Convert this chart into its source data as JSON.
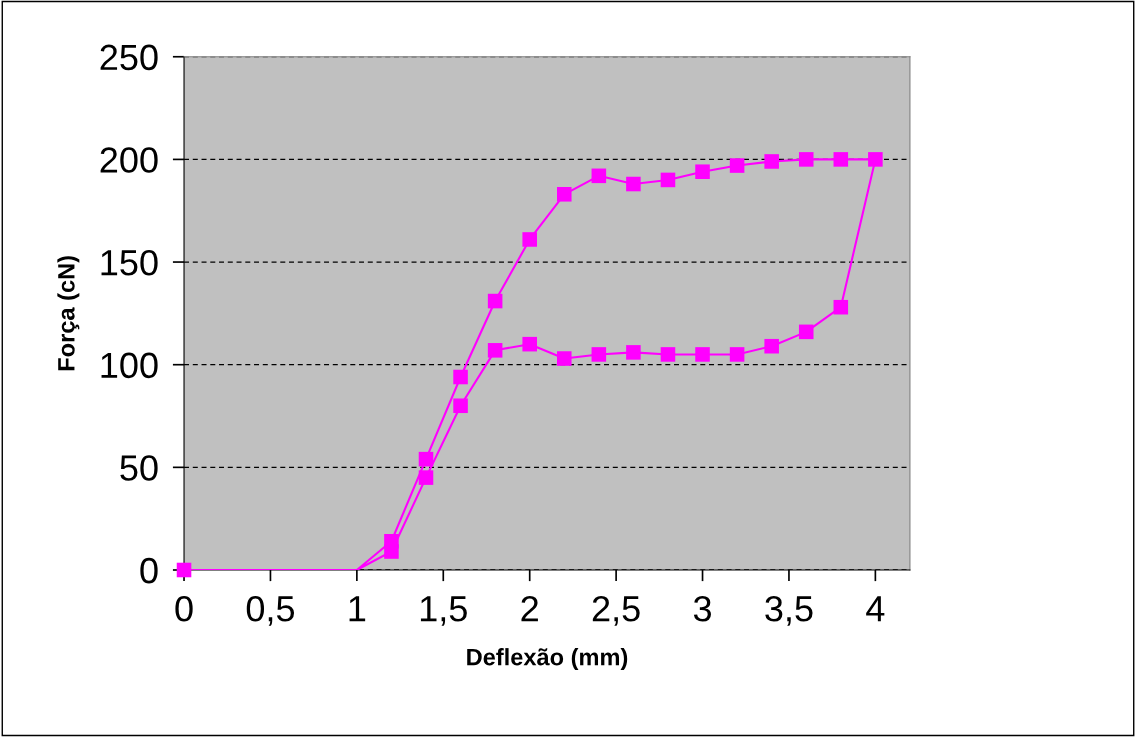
{
  "chart_data": {
    "type": "line",
    "xlabel": "Deflexão (mm)",
    "ylabel": "Força (cN)",
    "xlim": [
      0,
      4.2
    ],
    "xticks": [
      0,
      {
        "value": 0.5,
        "label": "0,5"
      },
      1,
      {
        "value": 1.5,
        "label": "1,5"
      },
      2,
      {
        "value": 2.5,
        "label": "2,5"
      },
      3,
      {
        "value": 3.5,
        "label": "3,5"
      },
      4
    ],
    "ylim": [
      0,
      250
    ],
    "yticks": [
      0,
      50,
      100,
      150,
      200,
      250
    ],
    "grid": "y",
    "legend": false,
    "series": [
      {
        "marker": "none",
        "color": "#ff00ff",
        "x": [
          0,
          1,
          1.2,
          1.4,
          1.6,
          1.8,
          2.0,
          2.2,
          2.4,
          2.6,
          2.8,
          3.0,
          3.2,
          3.4,
          3.6,
          3.8,
          4.0,
          3.8,
          3.6,
          3.4,
          3.2,
          3.0,
          2.8,
          2.6,
          2.4,
          2.2,
          2.0,
          1.8,
          1.6,
          1.4,
          1.2,
          1
        ],
        "values": [
          0,
          0,
          14,
          54,
          94,
          131,
          161,
          183,
          192,
          188,
          190,
          194,
          197,
          199,
          200,
          200,
          200,
          128,
          116,
          109,
          105,
          105,
          105,
          106,
          105,
          103,
          110,
          107,
          80,
          45,
          9,
          0
        ]
      },
      {
        "type": "scatter",
        "marker": "square",
        "color": "#ff00ff",
        "x": [
          0,
          1.2,
          1.4,
          1.6,
          1.8,
          2.0,
          2.2,
          2.4,
          2.6,
          2.8,
          3.0,
          3.2,
          3.4,
          3.6,
          3.8,
          4.0,
          3.8,
          3.6,
          3.4,
          3.2,
          3.0,
          2.8,
          2.6,
          2.4,
          2.2,
          2.0,
          1.8,
          1.6,
          1.4,
          1.2
        ],
        "values": [
          0,
          14,
          54,
          94,
          131,
          161,
          183,
          192,
          188,
          190,
          194,
          197,
          199,
          200,
          200,
          200,
          128,
          116,
          109,
          105,
          105,
          105,
          106,
          105,
          103,
          110,
          107,
          80,
          45,
          9
        ]
      }
    ]
  }
}
